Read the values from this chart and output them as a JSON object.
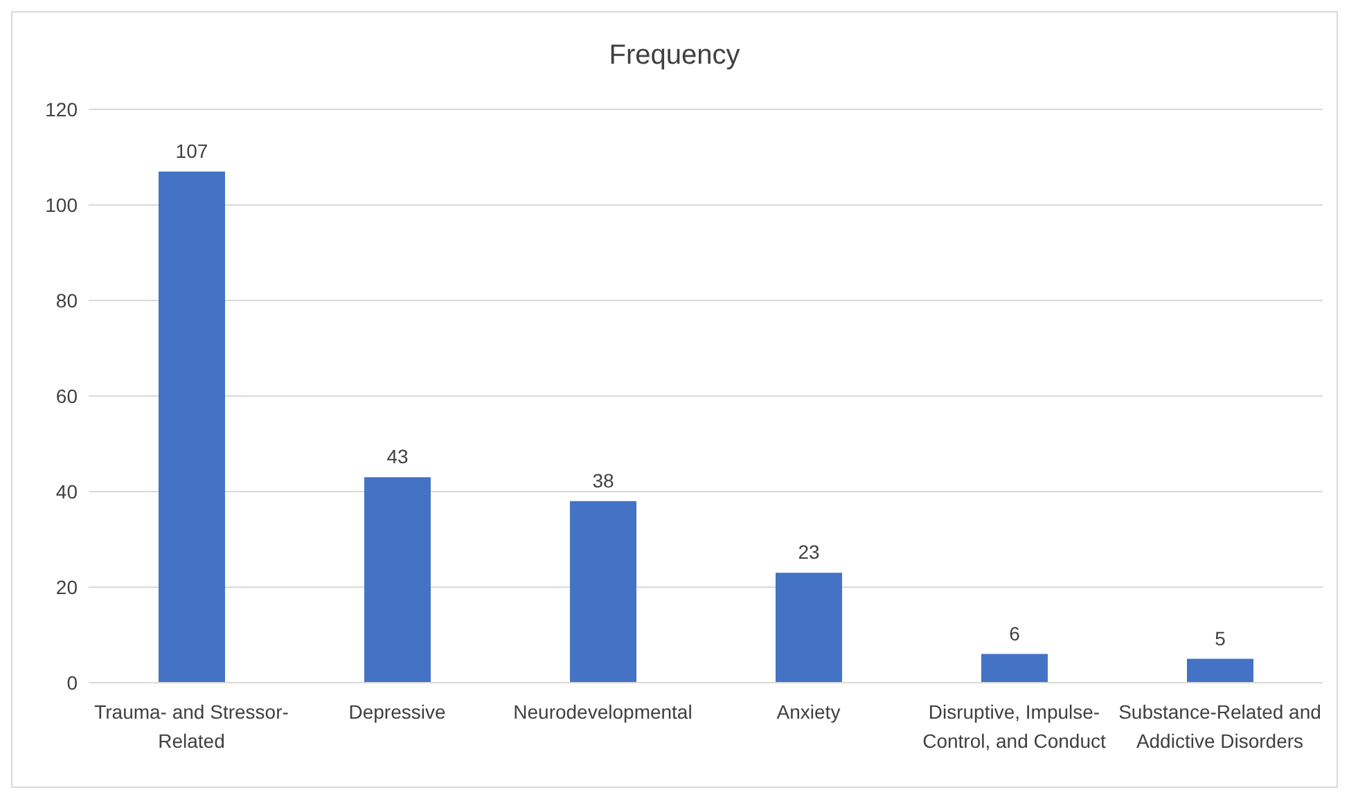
{
  "chart_data": {
    "type": "bar",
    "title": "Frequency",
    "categories": [
      "Trauma- and Stressor-Related",
      "Depressive",
      "Neurodevelopmental",
      "Anxiety",
      "Disruptive, Impulse-Control, and Conduct",
      "Substance-Related and Addictive Disorders"
    ],
    "values": [
      107,
      43,
      38,
      23,
      6,
      5
    ],
    "color": "#4472c4",
    "ylim": [
      0,
      120
    ],
    "yticks": [
      0,
      20,
      40,
      60,
      80,
      100,
      120
    ],
    "grid": "y",
    "data_labels": true,
    "legend": false
  }
}
